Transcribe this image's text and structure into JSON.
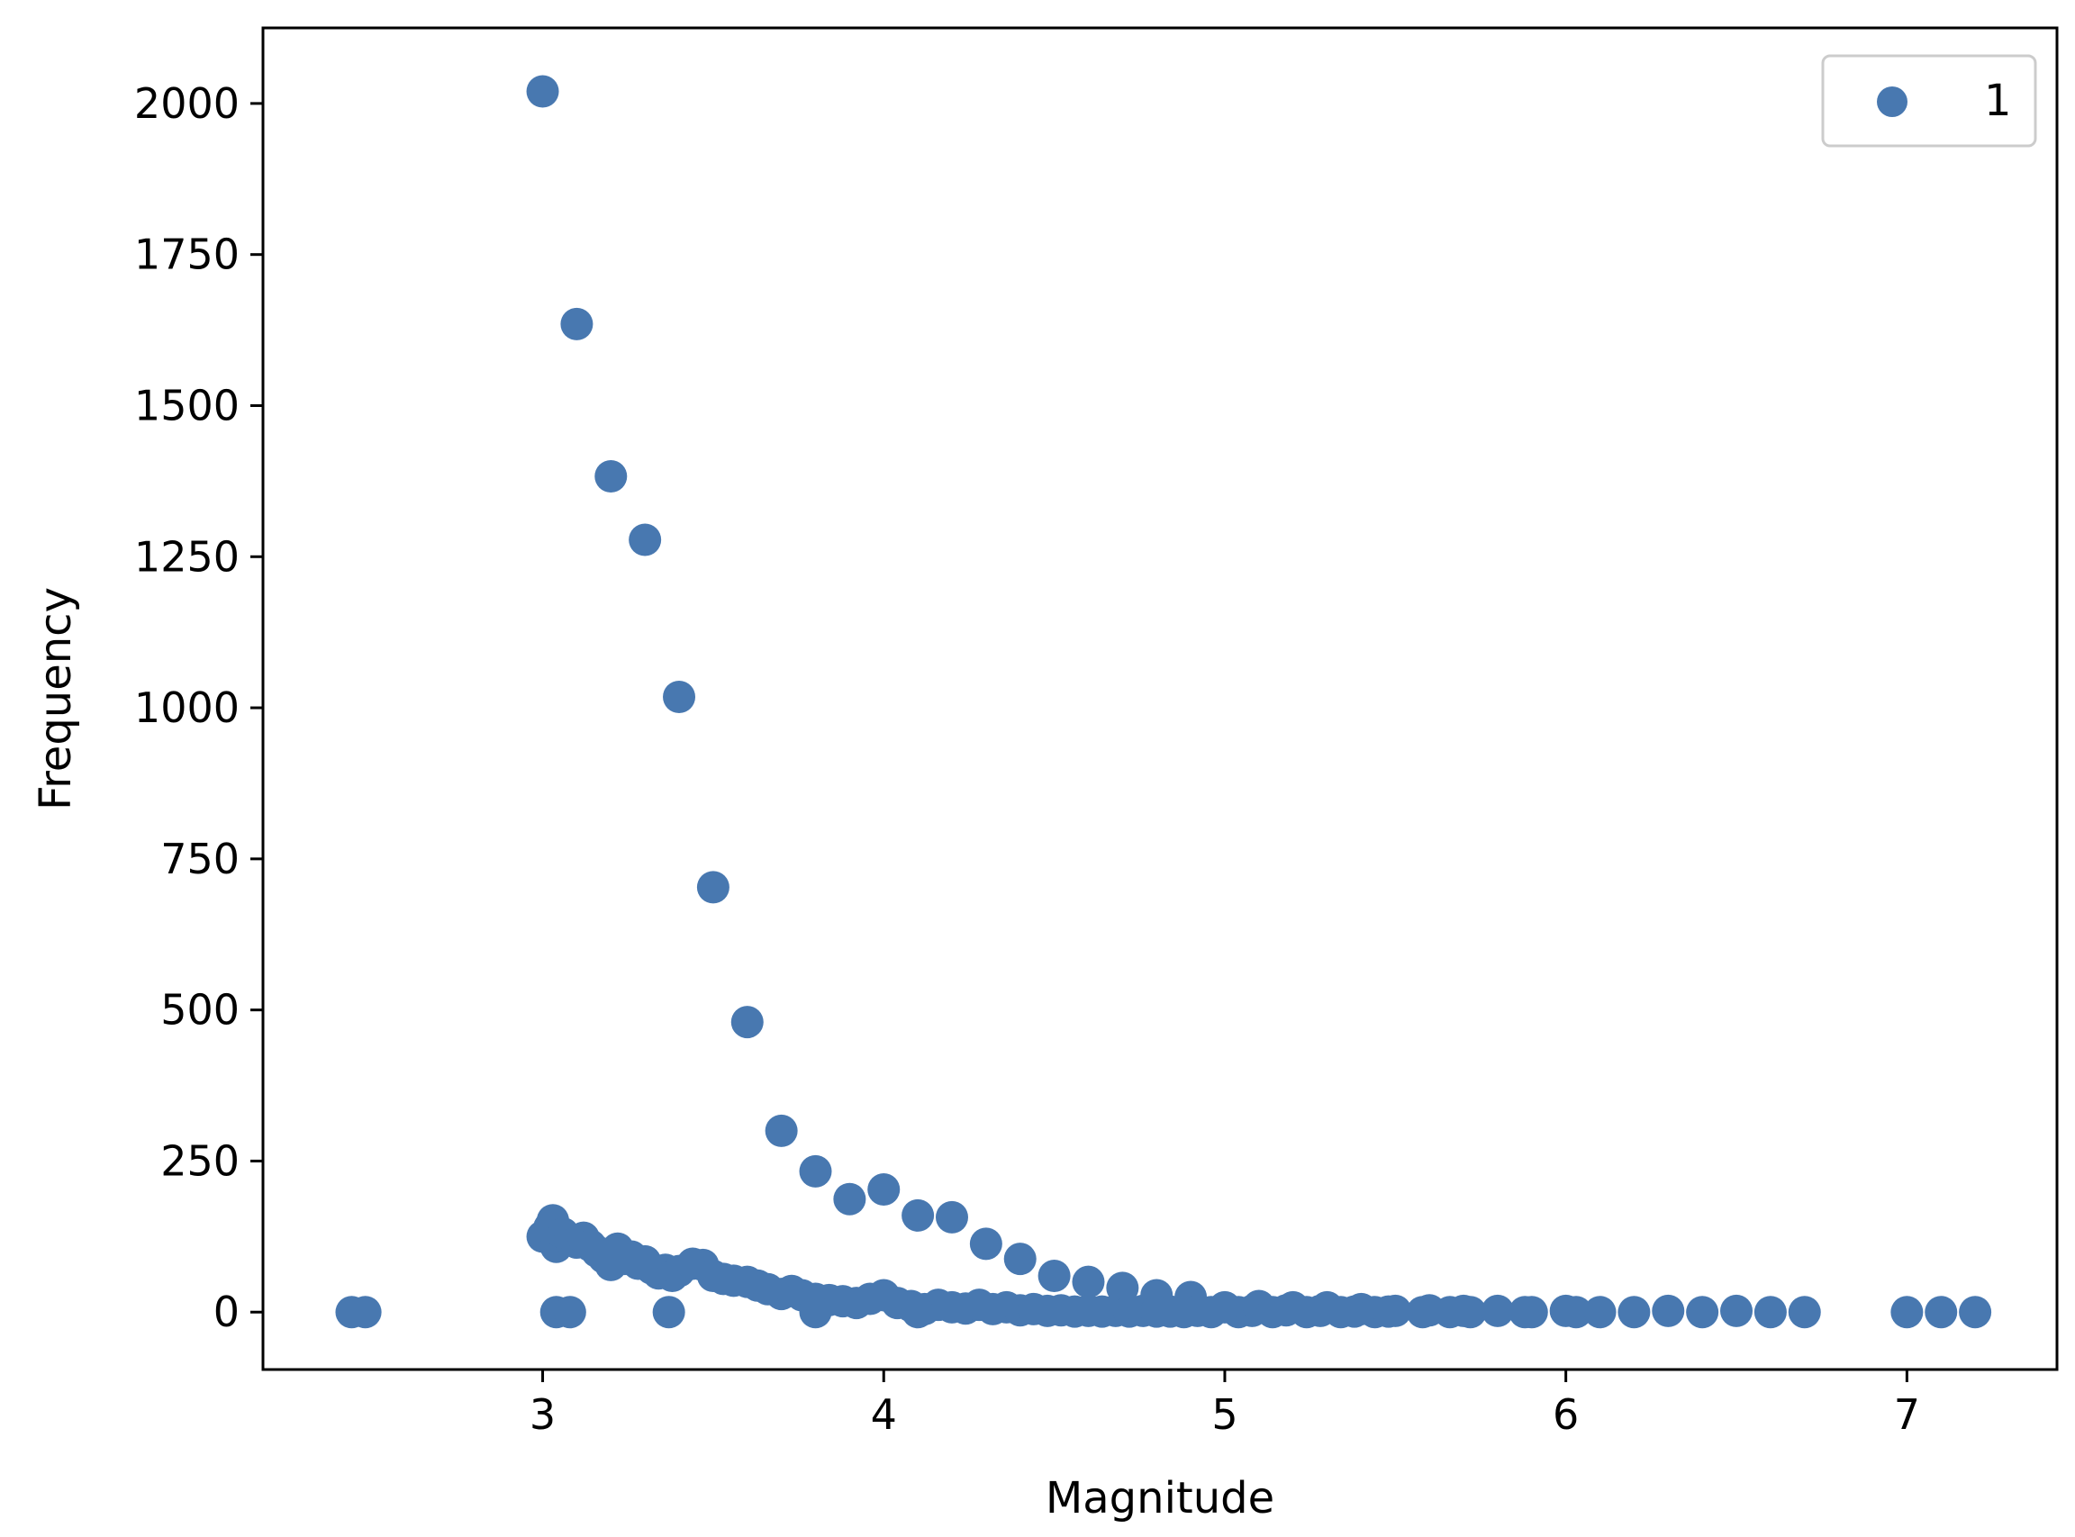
{
  "chart_data": {
    "type": "scatter",
    "xlabel": "Magnitude",
    "ylabel": "Frequency",
    "xlim": [
      2.18,
      7.44
    ],
    "ylim": [
      -95,
      2125
    ],
    "xticks": [
      3,
      4,
      5,
      6,
      7
    ],
    "yticks": [
      0,
      250,
      500,
      750,
      1000,
      1250,
      1500,
      1750,
      2000
    ],
    "legend": {
      "position": "top-right",
      "entries": [
        "1"
      ]
    },
    "grid": false,
    "color": "#4878b0",
    "series": [
      {
        "name": "1",
        "points": [
          [
            2.44,
            0
          ],
          [
            2.48,
            0
          ],
          [
            3.0,
            2020
          ],
          [
            3.1,
            1635
          ],
          [
            3.2,
            1383
          ],
          [
            3.3,
            1278
          ],
          [
            3.4,
            1018
          ],
          [
            3.5,
            703
          ],
          [
            3.6,
            480
          ],
          [
            3.7,
            300
          ],
          [
            3.8,
            233
          ],
          [
            3.9,
            187
          ],
          [
            4.0,
            203
          ],
          [
            4.1,
            160
          ],
          [
            4.2,
            157
          ],
          [
            4.3,
            113
          ],
          [
            4.4,
            88
          ],
          [
            4.5,
            60
          ],
          [
            4.6,
            50
          ],
          [
            4.7,
            40
          ],
          [
            4.8,
            28
          ],
          [
            4.9,
            25
          ],
          [
            3.0,
            125
          ],
          [
            3.02,
            140
          ],
          [
            3.03,
            152
          ],
          [
            3.04,
            108
          ],
          [
            3.06,
            130
          ],
          [
            3.08,
            120
          ],
          [
            3.1,
            115
          ],
          [
            3.12,
            123
          ],
          [
            3.14,
            110
          ],
          [
            3.16,
            100
          ],
          [
            3.18,
            90
          ],
          [
            3.2,
            78
          ],
          [
            3.22,
            105
          ],
          [
            3.24,
            88
          ],
          [
            3.26,
            92
          ],
          [
            3.28,
            80
          ],
          [
            3.3,
            84
          ],
          [
            3.32,
            72
          ],
          [
            3.34,
            64
          ],
          [
            3.36,
            70
          ],
          [
            3.38,
            60
          ],
          [
            3.4,
            68
          ],
          [
            3.44,
            80
          ],
          [
            3.47,
            78
          ],
          [
            3.5,
            60
          ],
          [
            3.53,
            55
          ],
          [
            3.56,
            52
          ],
          [
            3.6,
            50
          ],
          [
            3.63,
            44
          ],
          [
            3.66,
            38
          ],
          [
            3.7,
            30
          ],
          [
            3.73,
            35
          ],
          [
            3.76,
            28
          ],
          [
            3.8,
            22
          ],
          [
            3.84,
            20
          ],
          [
            3.88,
            18
          ],
          [
            3.92,
            15
          ],
          [
            3.96,
            22
          ],
          [
            4.0,
            28
          ],
          [
            4.04,
            15
          ],
          [
            4.08,
            10
          ],
          [
            4.12,
            5
          ],
          [
            4.16,
            12
          ],
          [
            4.2,
            8
          ],
          [
            4.24,
            6
          ],
          [
            4.28,
            12
          ],
          [
            4.32,
            5
          ],
          [
            4.36,
            8
          ],
          [
            4.4,
            3
          ],
          [
            4.44,
            5
          ],
          [
            4.48,
            2
          ],
          [
            4.52,
            3
          ],
          [
            4.56,
            1
          ],
          [
            4.6,
            2
          ],
          [
            4.64,
            1
          ],
          [
            4.68,
            2
          ],
          [
            4.72,
            1
          ],
          [
            4.76,
            2
          ],
          [
            4.8,
            1
          ],
          [
            4.84,
            1
          ],
          [
            4.88,
            0
          ],
          [
            4.92,
            2
          ],
          [
            4.96,
            0
          ],
          [
            3.04,
            0
          ],
          [
            3.08,
            0
          ],
          [
            3.37,
            0
          ],
          [
            3.8,
            0
          ],
          [
            4.1,
            0
          ],
          [
            5.0,
            8
          ],
          [
            5.04,
            0
          ],
          [
            5.08,
            2
          ],
          [
            5.1,
            10
          ],
          [
            5.14,
            0
          ],
          [
            5.18,
            3
          ],
          [
            5.2,
            8
          ],
          [
            5.24,
            0
          ],
          [
            5.28,
            2
          ],
          [
            5.3,
            8
          ],
          [
            5.34,
            0
          ],
          [
            5.38,
            1
          ],
          [
            5.4,
            5
          ],
          [
            5.44,
            0
          ],
          [
            5.48,
            1
          ],
          [
            5.5,
            2
          ],
          [
            5.58,
            0
          ],
          [
            5.6,
            3
          ],
          [
            5.66,
            0
          ],
          [
            5.7,
            2
          ],
          [
            5.72,
            0
          ],
          [
            5.8,
            2
          ],
          [
            5.88,
            0
          ],
          [
            5.9,
            0
          ],
          [
            6.0,
            2
          ],
          [
            6.03,
            0
          ],
          [
            6.1,
            0
          ],
          [
            6.2,
            0
          ],
          [
            6.3,
            2
          ],
          [
            6.4,
            0
          ],
          [
            6.5,
            2
          ],
          [
            6.6,
            0
          ],
          [
            6.7,
            0
          ],
          [
            7.0,
            0
          ],
          [
            7.1,
            0
          ],
          [
            7.2,
            0
          ]
        ]
      }
    ]
  }
}
